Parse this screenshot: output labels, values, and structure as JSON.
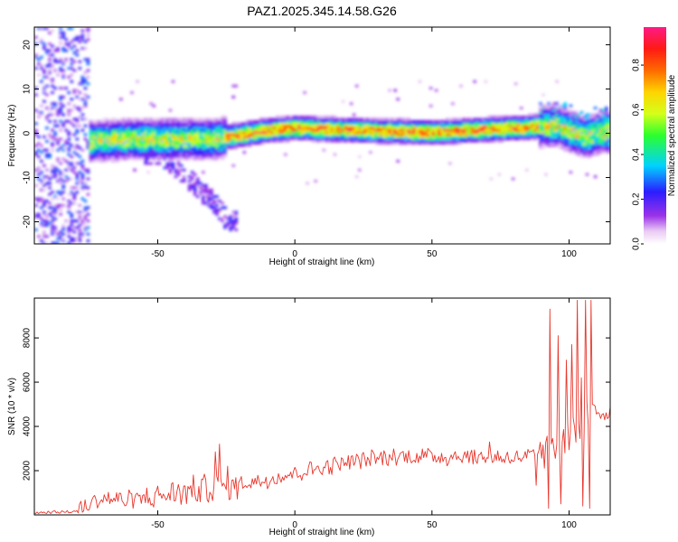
{
  "figure_title": "PAZ1.2025.345.14.58.G26",
  "chart_data": [
    {
      "type": "heatmap",
      "title": "PAZ1.2025.345.14.58.G26",
      "xlabel": "Height of straight line (km)",
      "ylabel": "Frequency (Hz)",
      "xlim": [
        -95,
        115
      ],
      "ylim": [
        -25,
        24
      ],
      "xticks": [
        -50,
        0,
        50,
        100
      ],
      "xtick_labels": [
        "-50",
        "0",
        "50",
        "100"
      ],
      "yticks": [
        -20,
        -10,
        0,
        10,
        20
      ],
      "ytick_labels": [
        "-20",
        "-10",
        "0",
        "10",
        "20"
      ],
      "colorbar": {
        "label": "Normalized spectral amplitude",
        "range": [
          0.0,
          0.97
        ],
        "ticks": [
          0.0,
          0.2,
          0.4,
          0.6,
          0.8
        ],
        "tick_labels": [
          "0.0",
          "0.2",
          "0.4",
          "0.6",
          "0.8"
        ],
        "colormap": "rainbow (white-violet-blue-cyan-green-yellow-red-magenta)"
      },
      "features": {
        "ridge_frequency_hz": [
          {
            "x": -75,
            "y": -2.0
          },
          {
            "x": -60,
            "y": -1.5
          },
          {
            "x": -45,
            "y": -1.5
          },
          {
            "x": -30,
            "y": -1.5
          },
          {
            "x": -20,
            "y": -0.5
          },
          {
            "x": -10,
            "y": 0.5
          },
          {
            "x": 0,
            "y": 1.0
          },
          {
            "x": 20,
            "y": 0.5
          },
          {
            "x": 50,
            "y": 0.0
          },
          {
            "x": 80,
            "y": 1.0
          },
          {
            "x": 95,
            "y": 1.5
          },
          {
            "x": 105,
            "y": -1.0
          },
          {
            "x": 112,
            "y": 0.0
          }
        ],
        "ridge_peak_amplitude": 0.97,
        "noise_region_x": [
          -95,
          -75
        ],
        "noise_amplitude_range": [
          0.05,
          0.3
        ],
        "descending_branch": [
          {
            "x": -50,
            "y": -5
          },
          {
            "x": -40,
            "y": -10
          },
          {
            "x": -30,
            "y": -16
          },
          {
            "x": -25,
            "y": -20
          }
        ]
      }
    },
    {
      "type": "line",
      "xlabel": "Height of straight line (km)",
      "ylabel": "SNR (10 * v/v)",
      "xlim": [
        -95,
        115
      ],
      "ylim": [
        0,
        9800
      ],
      "xticks": [
        -50,
        0,
        50,
        100
      ],
      "xtick_labels": [
        "-50",
        "0",
        "50",
        "100"
      ],
      "yticks": [
        2000,
        4000,
        6000,
        8000
      ],
      "ytick_labels": [
        "2000",
        "4000",
        "6000",
        "8000"
      ],
      "series": [
        {
          "name": "SNR",
          "color": "#e8382e",
          "x_step_km": 0.5,
          "envelope": [
            {
              "x": -95,
              "y": 100
            },
            {
              "x": -80,
              "y": 150
            },
            {
              "x": -75,
              "y": 500
            },
            {
              "x": -70,
              "y": 750
            },
            {
              "x": -60,
              "y": 650
            },
            {
              "x": -50,
              "y": 850
            },
            {
              "x": -40,
              "y": 1050
            },
            {
              "x": -30,
              "y": 1250
            },
            {
              "x": -20,
              "y": 1400
            },
            {
              "x": -10,
              "y": 1600
            },
            {
              "x": 0,
              "y": 1900
            },
            {
              "x": 10,
              "y": 2150
            },
            {
              "x": 20,
              "y": 2400
            },
            {
              "x": 30,
              "y": 2550
            },
            {
              "x": 40,
              "y": 2650
            },
            {
              "x": 50,
              "y": 2650
            },
            {
              "x": 60,
              "y": 2650
            },
            {
              "x": 70,
              "y": 2600
            },
            {
              "x": 80,
              "y": 2600
            },
            {
              "x": 90,
              "y": 2700
            },
            {
              "x": 100,
              "y": 3500
            },
            {
              "x": 107,
              "y": 4500
            },
            {
              "x": 110,
              "y": 4700
            },
            {
              "x": 115,
              "y": 4700
            }
          ],
          "spikes": [
            {
              "x": -27.5,
              "y": 3200
            },
            {
              "x": -29,
              "y": 2850
            },
            {
              "x": 71,
              "y": 3300
            },
            {
              "x": 93,
              "y": 9300
            },
            {
              "x": 96,
              "y": 8100
            },
            {
              "x": 99,
              "y": 7000
            },
            {
              "x": 101,
              "y": 7700
            },
            {
              "x": 103,
              "y": 9700
            },
            {
              "x": 104.5,
              "y": 6200
            },
            {
              "x": 106,
              "y": 9700
            },
            {
              "x": 108,
              "y": 9700
            }
          ],
          "dips": [
            {
              "x": 92.5,
              "y": 300
            },
            {
              "x": 97,
              "y": 500
            },
            {
              "x": 105,
              "y": 400
            },
            {
              "x": 107.5,
              "y": 300
            }
          ]
        }
      ]
    }
  ]
}
